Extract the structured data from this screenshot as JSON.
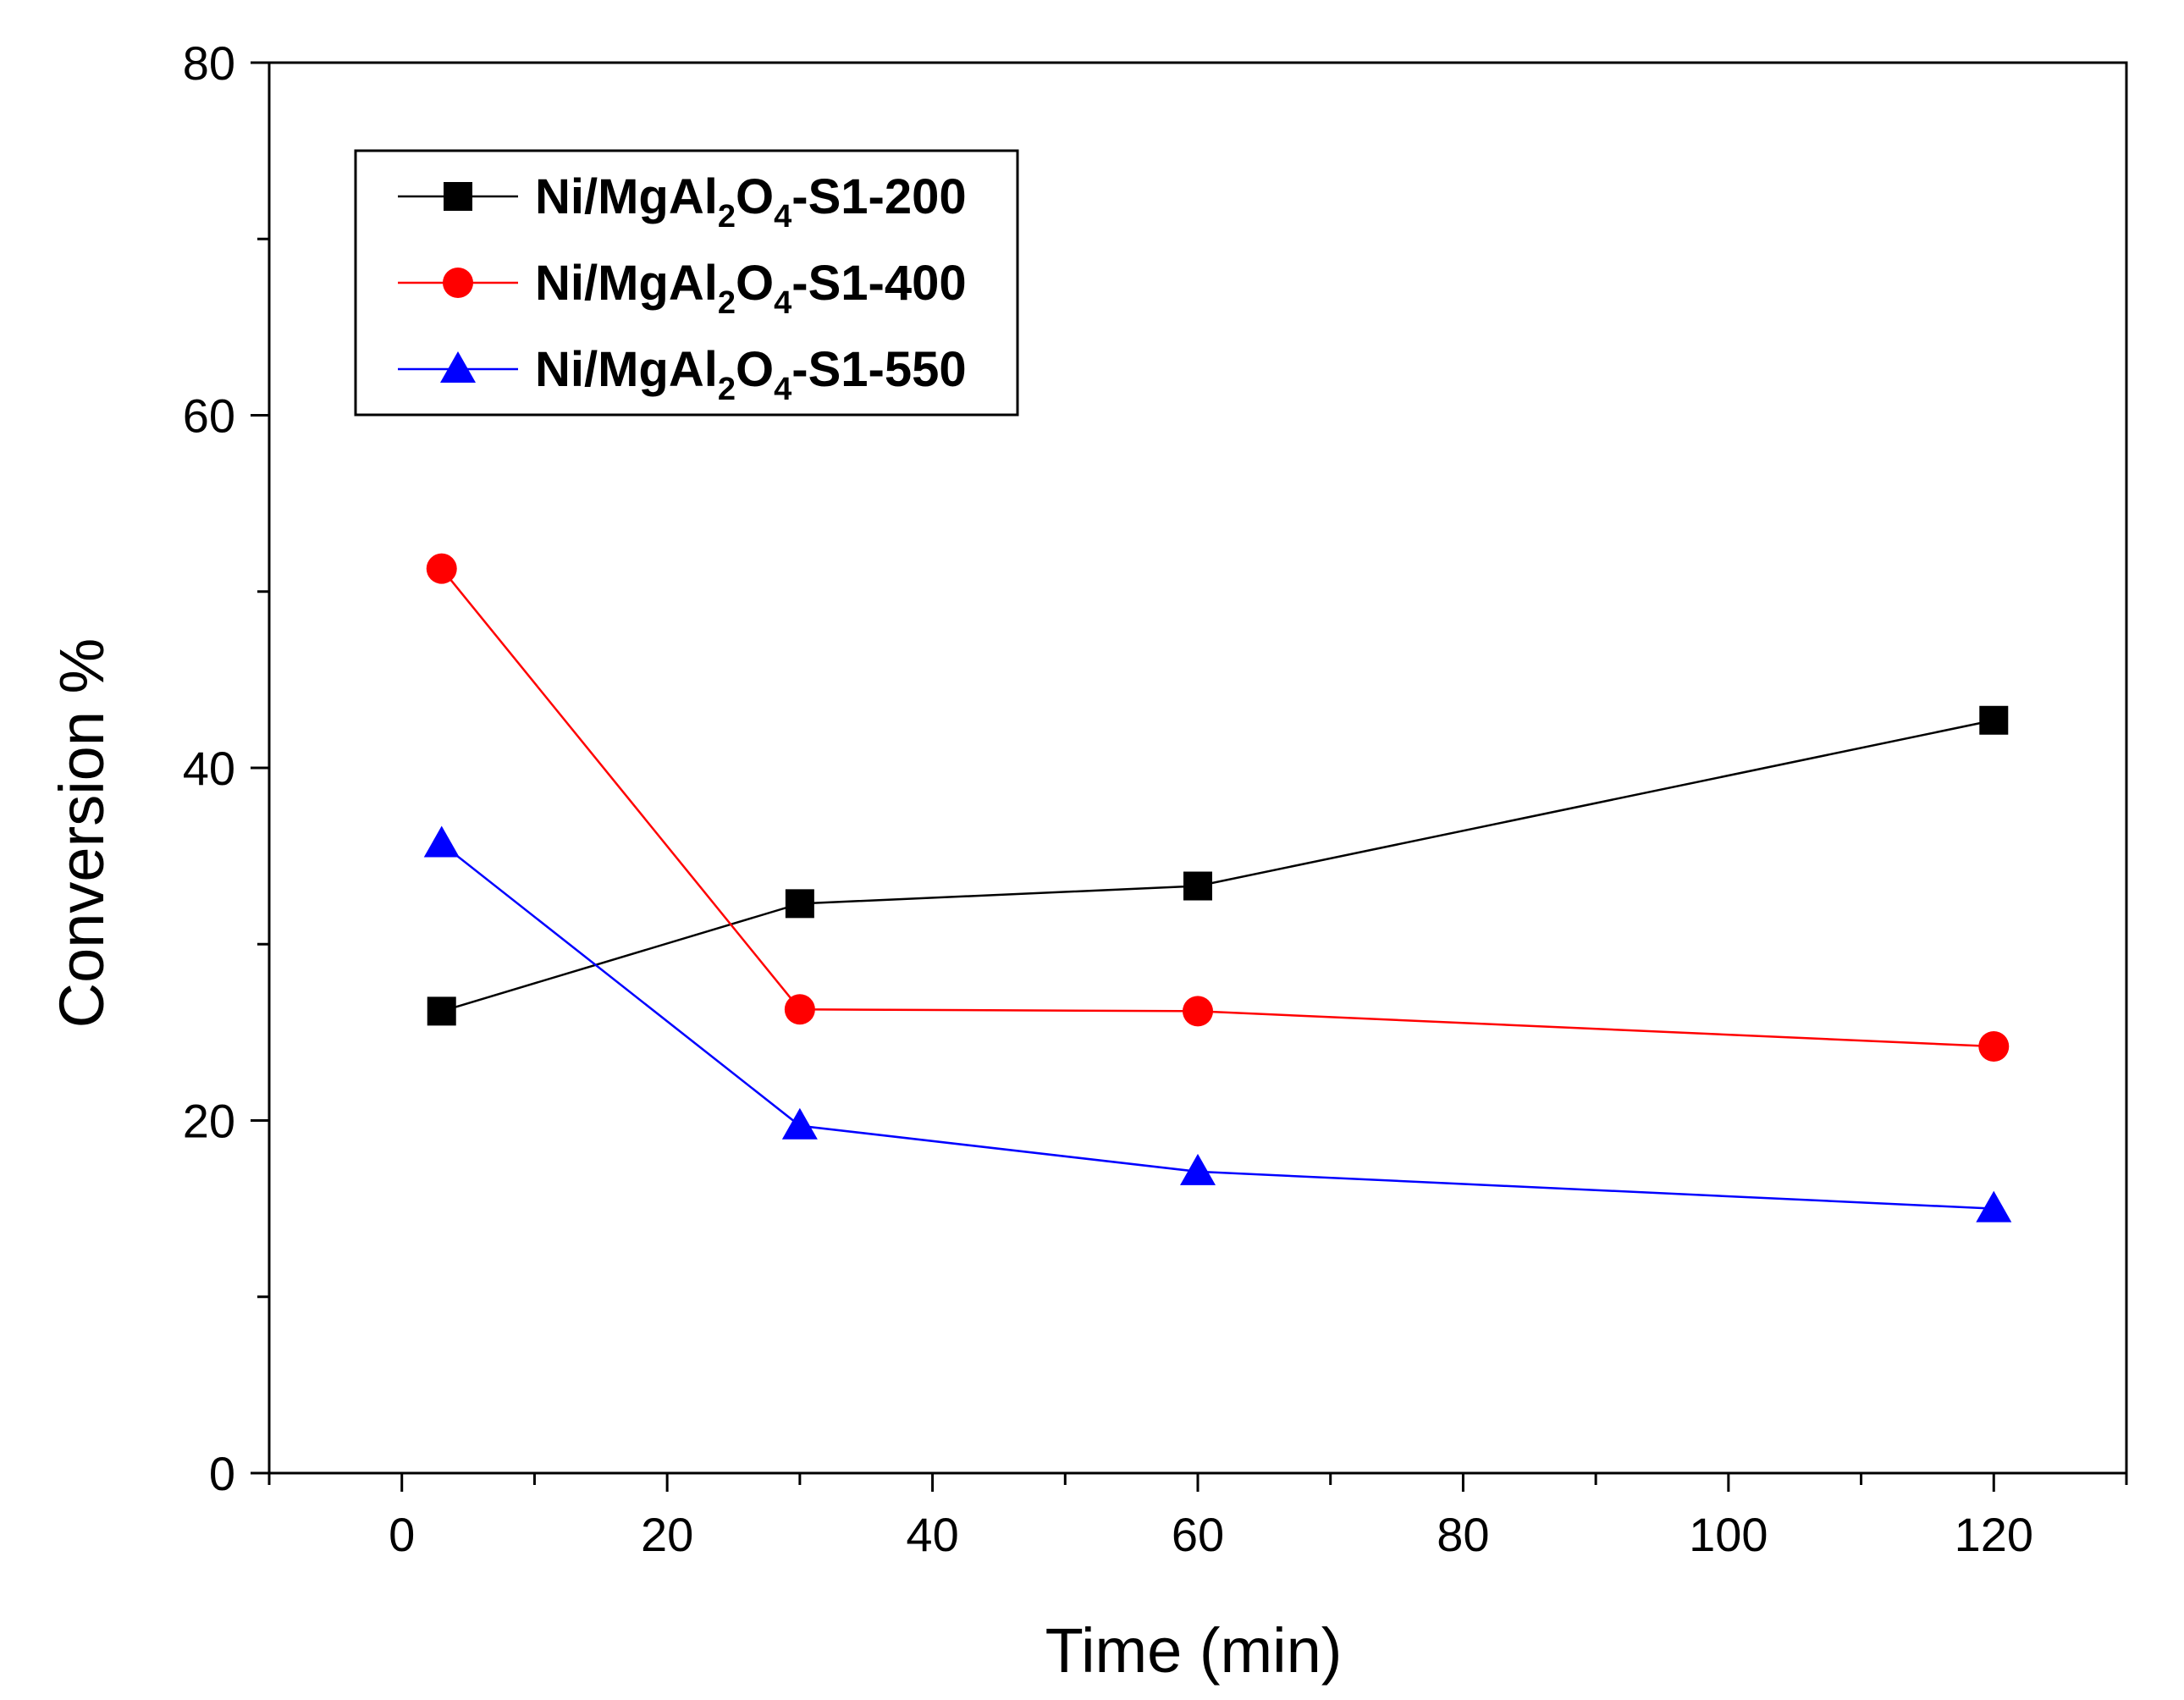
{
  "chart_data": {
    "type": "line",
    "title": "",
    "xlabel": "Time (min)",
    "ylabel": "Conversion %",
    "xlim": [
      -10,
      130
    ],
    "ylim": [
      0,
      80
    ],
    "x_ticks": [
      "0",
      "20",
      "40",
      "60",
      "80",
      "100",
      "120"
    ],
    "y_ticks": [
      "0",
      "20",
      "40",
      "60",
      "80"
    ],
    "grid": false,
    "legend_position": "top-left",
    "series": [
      {
        "name": "Ni/MgAl2O4-S1-200",
        "label_parts": [
          "Ni/MgAl",
          "2",
          "O",
          "4",
          "-S1-200"
        ],
        "color": "#000000",
        "marker": "square",
        "x": [
          3,
          30,
          60,
          120
        ],
        "y": [
          26.2,
          32.3,
          33.3,
          42.7
        ]
      },
      {
        "name": "Ni/MgAl2O4-S1-400",
        "label_parts": [
          "Ni/MgAl",
          "2",
          "O",
          "4",
          "-S1-400"
        ],
        "color": "#ff0000",
        "marker": "circle",
        "x": [
          3,
          30,
          60,
          120
        ],
        "y": [
          51.3,
          26.3,
          26.2,
          24.2
        ]
      },
      {
        "name": "Ni/MgAl2O4-S1-550",
        "label_parts": [
          "Ni/MgAl",
          "2",
          "O",
          "4",
          "-S1-550"
        ],
        "color": "#0000ff",
        "marker": "triangle",
        "x": [
          3,
          30,
          60,
          120
        ],
        "y": [
          35.7,
          19.7,
          17.1,
          15.0
        ]
      }
    ]
  }
}
